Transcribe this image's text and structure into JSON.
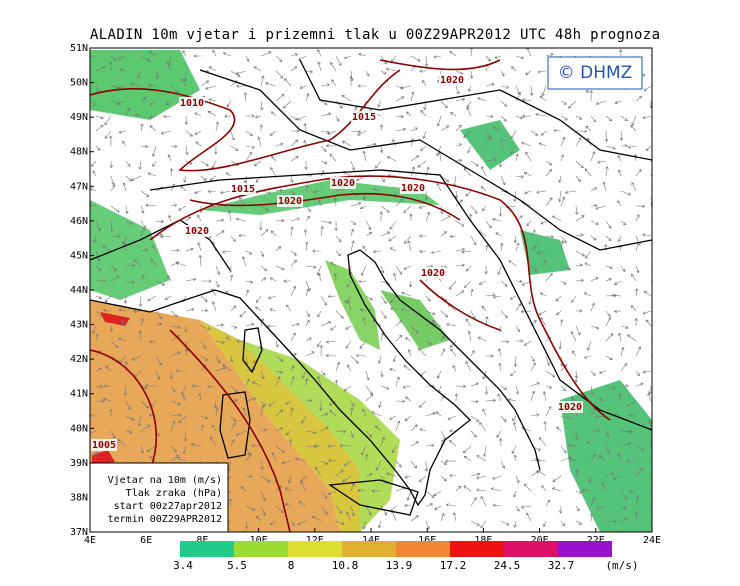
{
  "title": "ALADIN 10m vjetar i prizemni tlak u 00Z29APR2012 UTC 48h prognoza",
  "logo": "© DHMZ",
  "lat_ticks": [
    {
      "value": 51,
      "label": "51N"
    },
    {
      "value": 50,
      "label": "50N"
    },
    {
      "value": 49,
      "label": "49N"
    },
    {
      "value": 48,
      "label": "48N"
    },
    {
      "value": 47,
      "label": "47N"
    },
    {
      "value": 46,
      "label": "46N"
    },
    {
      "value": 45,
      "label": "45N"
    },
    {
      "value": 44,
      "label": "44N"
    },
    {
      "value": 43,
      "label": "43N"
    },
    {
      "value": 42,
      "label": "42N"
    },
    {
      "value": 41,
      "label": "41N"
    },
    {
      "value": 40,
      "label": "40N"
    },
    {
      "value": 39,
      "label": "39N"
    },
    {
      "value": 38,
      "label": "38N"
    },
    {
      "value": 37,
      "label": "37N"
    }
  ],
  "lon_ticks": [
    {
      "value": 4,
      "label": "4E"
    },
    {
      "value": 6,
      "label": "6E"
    },
    {
      "value": 8,
      "label": "8E"
    },
    {
      "value": 10,
      "label": "10E"
    },
    {
      "value": 12,
      "label": "12E"
    },
    {
      "value": 14,
      "label": "14E"
    },
    {
      "value": 16,
      "label": "16E"
    },
    {
      "value": 18,
      "label": "18E"
    },
    {
      "value": 20,
      "label": "20E"
    },
    {
      "value": 22,
      "label": "22E"
    },
    {
      "value": 24,
      "label": "24E"
    }
  ],
  "isobar_labels": [
    1010,
    1015,
    1020,
    1015,
    1020,
    1020,
    1020,
    1020,
    1020,
    1020,
    1005
  ],
  "info_box": [
    "Vjetar na 10m (m/s)",
    "Tlak zraka (hPa)",
    "start 00z27apr2012",
    "termin 00Z29APR2012"
  ],
  "colorbar": {
    "values": [
      3.4,
      5.5,
      8,
      10.8,
      13.9,
      17.2,
      24.5,
      32.7
    ],
    "colors": [
      "#22cc88",
      "#99dd33",
      "#dddd33",
      "#e0b030",
      "#ee8833",
      "#ee1111",
      "#dd1166",
      "#9911cc"
    ],
    "unit": "(m/s)"
  }
}
